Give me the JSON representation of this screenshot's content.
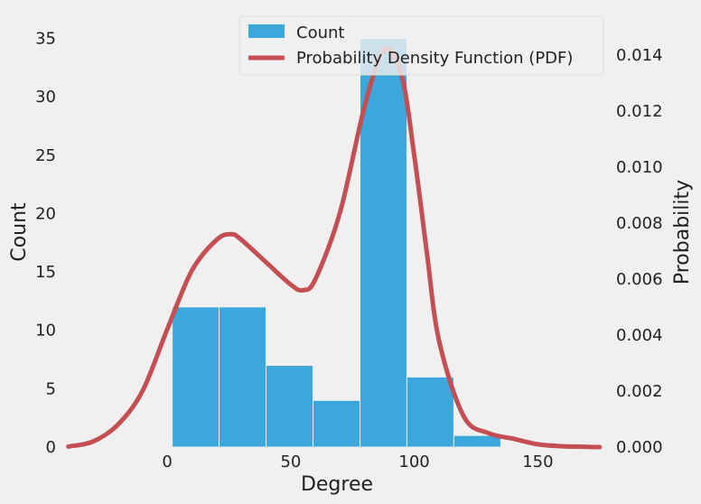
{
  "chart_data": {
    "type": "bar",
    "xlabel": "Degree",
    "ylabel": "Count",
    "y2label": "Probability",
    "xlim": [
      -45,
      178
    ],
    "ylim": [
      0,
      35.5
    ],
    "y2lim": [
      0,
      0.0148
    ],
    "xticks": [
      0,
      50,
      100,
      150
    ],
    "yticks": [
      0,
      5,
      10,
      15,
      20,
      25,
      30,
      35
    ],
    "y2ticks": [
      "0.000",
      "0.002",
      "0.004",
      "0.006",
      "0.008",
      "0.010",
      "0.012",
      "0.014"
    ],
    "y2tick_values": [
      0,
      0.002,
      0.004,
      0.006,
      0.008,
      0.01,
      0.012,
      0.014
    ],
    "grid": false,
    "legend_position": "top-center",
    "series": [
      {
        "name": "Count",
        "type": "bar",
        "color": "#3ca7da",
        "bins": [
          {
            "x0": 2,
            "x1": 21,
            "value": 12
          },
          {
            "x0": 21,
            "x1": 40,
            "value": 12
          },
          {
            "x0": 40,
            "x1": 59,
            "value": 7
          },
          {
            "x0": 59,
            "x1": 78,
            "value": 4
          },
          {
            "x0": 78,
            "x1": 97,
            "value": 35
          },
          {
            "x0": 97,
            "x1": 116,
            "value": 6
          },
          {
            "x0": 116,
            "x1": 135,
            "value": 1
          }
        ]
      },
      {
        "name": "Probability Density Function (PDF)",
        "type": "line",
        "axis": "right",
        "color": "#c44e52",
        "x": [
          -40,
          -30,
          -20,
          -10,
          0,
          10,
          20,
          26,
          30,
          40,
          50,
          55,
          60,
          70,
          80,
          88,
          95,
          100,
          105,
          110,
          120,
          130,
          140,
          150,
          160,
          170,
          175
        ],
        "y": [
          2e-05,
          0.0002,
          0.0008,
          0.002,
          0.0042,
          0.0063,
          0.0074,
          0.0076,
          0.0074,
          0.0066,
          0.0058,
          0.0056,
          0.006,
          0.0084,
          0.0122,
          0.0142,
          0.0132,
          0.0104,
          0.007,
          0.0038,
          0.0011,
          0.0005,
          0.0003,
          0.0001,
          3e-05,
          1e-05,
          0.0
        ]
      }
    ]
  }
}
